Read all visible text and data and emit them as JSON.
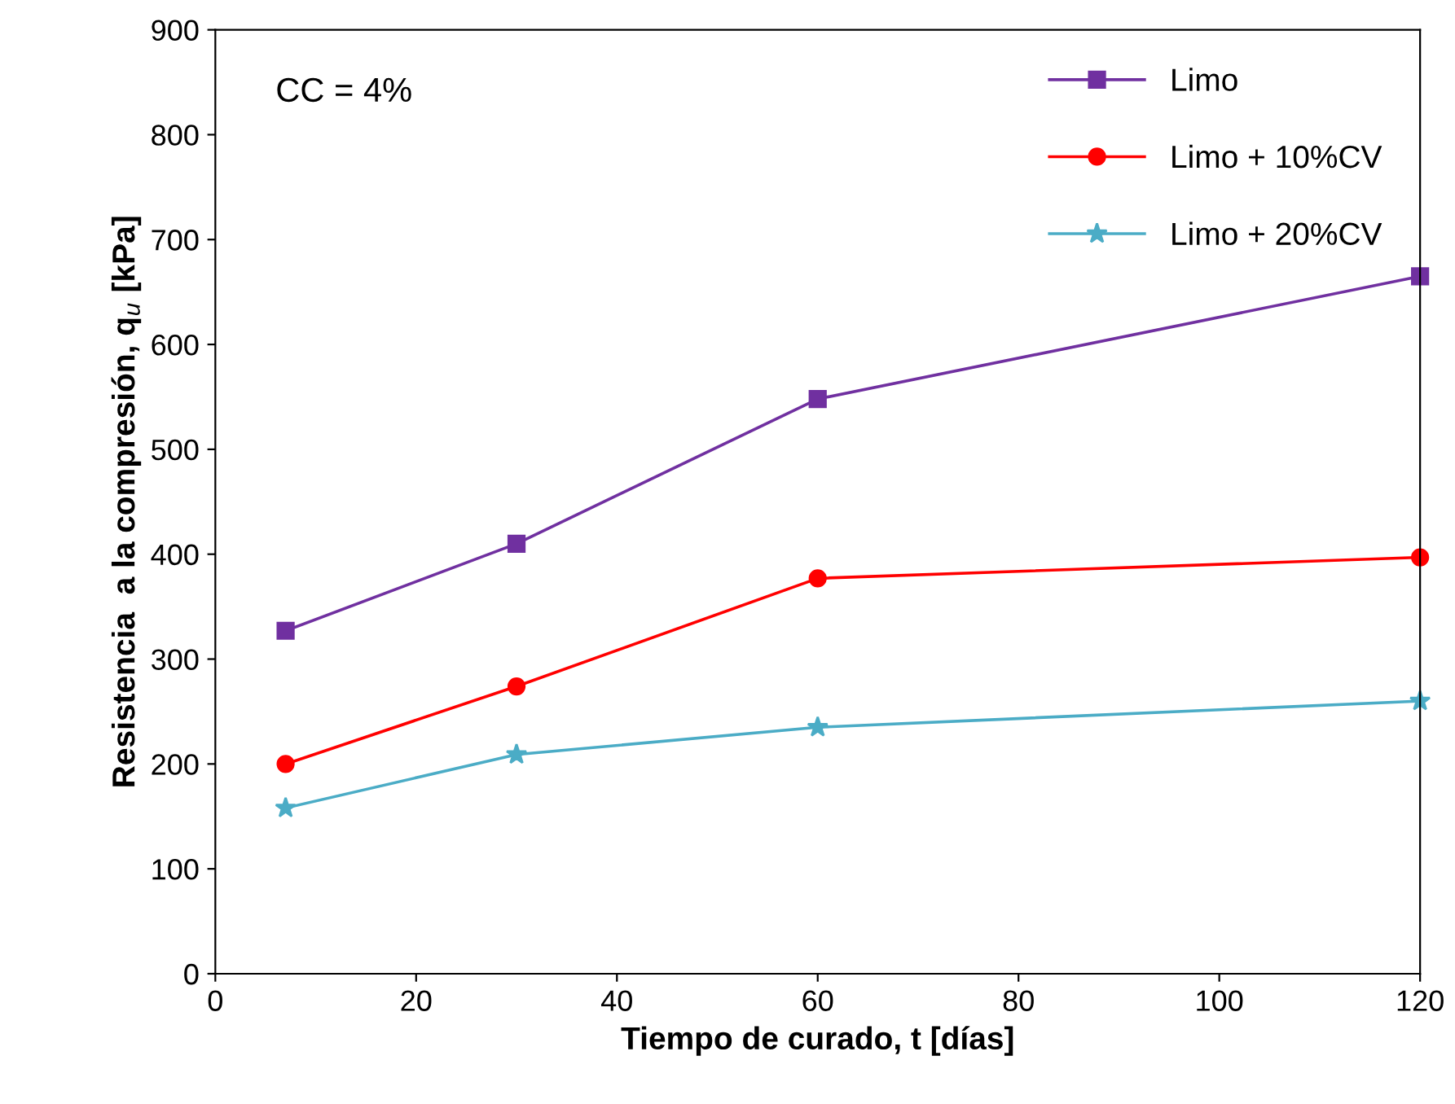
{
  "chart_data": {
    "type": "line",
    "xlabel": "Tiempo de curado, t [días]",
    "ylabel": "Resistencia  a la compresión, q$_{u}$ [kPa]",
    "x": [
      7,
      30,
      60,
      120
    ],
    "series": [
      {
        "name": "Limo",
        "color": "#7030a0",
        "marker": "square",
        "values": [
          327,
          410,
          548,
          665
        ]
      },
      {
        "name": "Limo + 10%CV",
        "color": "#ff0000",
        "marker": "circle",
        "values": [
          200,
          274,
          377,
          397
        ]
      },
      {
        "name": "Limo + 20%CV",
        "color": "#4bacc6",
        "marker": "star",
        "values": [
          158,
          209,
          235,
          260
        ]
      }
    ],
    "xlim": [
      0,
      120
    ],
    "xticks": [
      0,
      20,
      40,
      60,
      80,
      100,
      120
    ],
    "ylim": [
      0,
      900
    ],
    "yticks": [
      0,
      100,
      200,
      300,
      400,
      500,
      600,
      700,
      800,
      900
    ],
    "grid": false,
    "legend": "top right",
    "line_style": "solid",
    "annotations": [
      "CC = 4%"
    ]
  }
}
